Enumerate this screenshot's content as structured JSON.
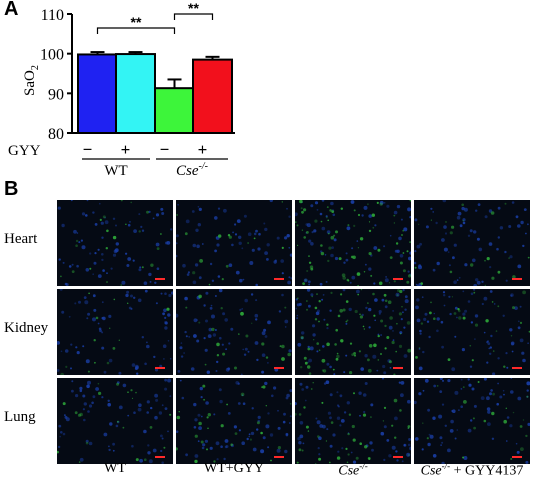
{
  "panel_a_label": "A",
  "panel_b_label": "B",
  "chart_data": {
    "type": "bar",
    "ylabel": "SaO",
    "ylabel_sub": "2",
    "ylim": [
      80,
      110
    ],
    "yticks": [
      "80",
      "90",
      "100",
      "110"
    ],
    "categories": [
      "WT −GYY",
      "WT +GYY",
      "Cse−/− −GYY",
      "Cse−/− +GYY"
    ],
    "values": [
      99.8,
      99.9,
      91.3,
      98.5
    ],
    "errors": [
      0.6,
      0.5,
      2.2,
      0.7
    ],
    "colors": [
      "#1f22f2",
      "#33f4f4",
      "#3df53a",
      "#f2101c"
    ],
    "row_label": "GYY",
    "treatment_marks": [
      "−",
      "+",
      "−",
      "+"
    ],
    "groups": [
      {
        "name": "WT",
        "base": "WT",
        "sup": ""
      },
      {
        "name": "Cse-/-",
        "base": "Cse",
        "sup": "-/-"
      }
    ],
    "significance": [
      {
        "from": 0,
        "to": 2,
        "label": "**"
      },
      {
        "from": 2,
        "to": 3,
        "label": "**"
      }
    ],
    "grid": false,
    "legend": "none"
  },
  "panel_b": {
    "rows": [
      "Heart",
      "Kidney",
      "Lung"
    ],
    "columns": [
      {
        "base": "WT",
        "sup": "",
        "suffix": ""
      },
      {
        "base": "WT+GYY",
        "sup": "",
        "suffix": ""
      },
      {
        "base": "Cse",
        "sup": "-/-",
        "suffix": ""
      },
      {
        "base": "Cse",
        "sup": "-/-",
        "suffix": " + GYY4137"
      }
    ],
    "green_intensity": [
      [
        0.15,
        0.1,
        0.55,
        0.15
      ],
      [
        0.1,
        0.15,
        0.6,
        0.2
      ],
      [
        0.15,
        0.2,
        0.3,
        0.15
      ]
    ],
    "colors": {
      "background": "#050a14",
      "nuclei": "#1a3fa8",
      "signal": "#2fae3a",
      "scale_bar": "#ff2a2a"
    }
  }
}
